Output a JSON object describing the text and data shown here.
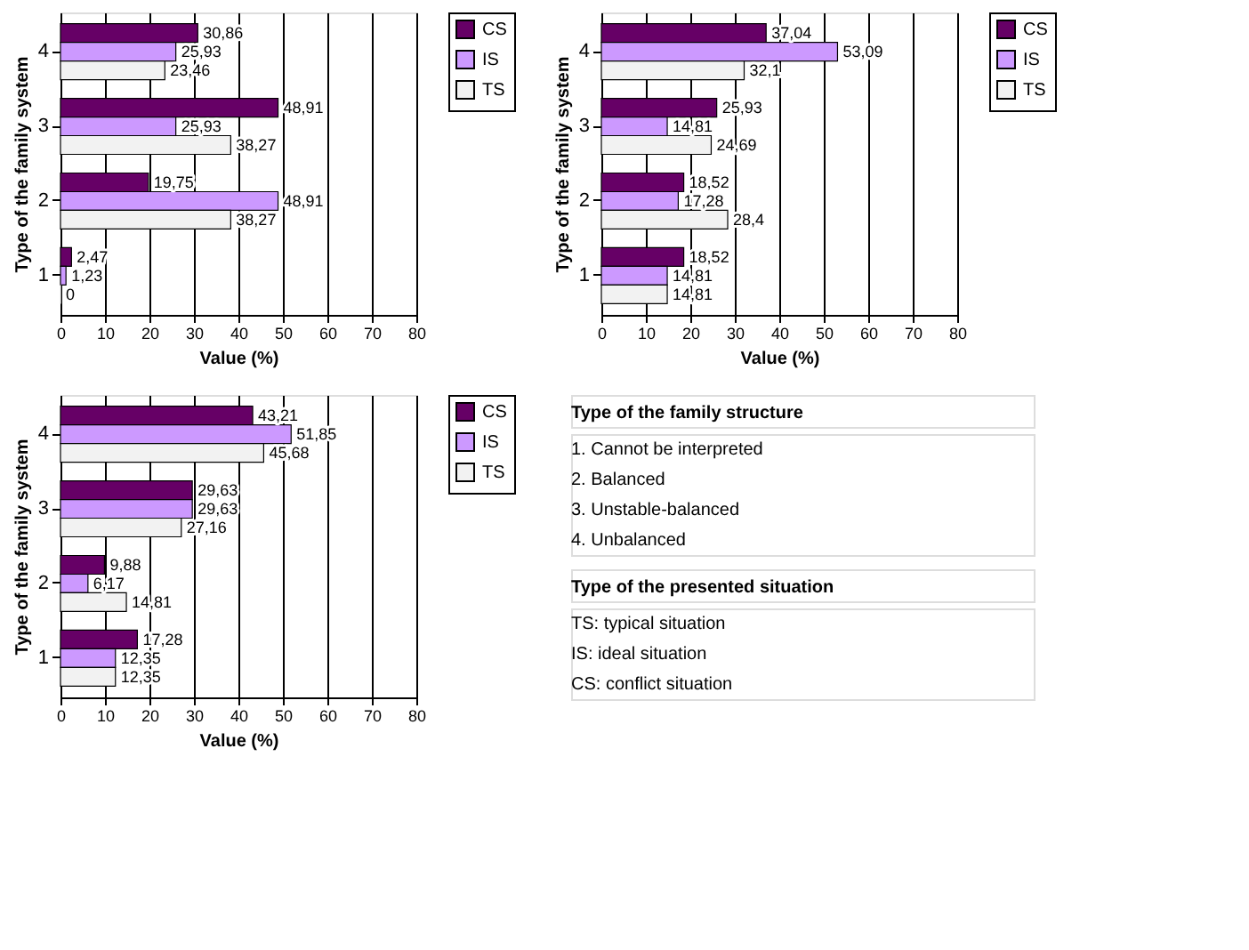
{
  "chart_data": [
    {
      "type": "bar",
      "orientation": "horizontal",
      "categories": [
        "4",
        "3",
        "2",
        "1"
      ],
      "xlabel": "Value (%)",
      "ylabel": "Type of the family system",
      "xlim": [
        0,
        80
      ],
      "xticks": [
        0,
        10,
        20,
        30,
        40,
        50,
        60,
        70,
        80
      ],
      "grid": "x",
      "legend": "right",
      "series": [
        {
          "name": "CS",
          "color": "#660066",
          "values": [
            30.86,
            48.91,
            19.75,
            2.47
          ],
          "value_labels": [
            "30,86",
            "48,91",
            "19,75",
            "2,47"
          ]
        },
        {
          "name": "IS",
          "color": "#cc99ff",
          "values": [
            25.93,
            25.93,
            48.91,
            1.23
          ],
          "value_labels": [
            "25,93",
            "25,93",
            "48,91",
            "1,23"
          ]
        },
        {
          "name": "TS",
          "color": "#f2f2f2",
          "values": [
            23.46,
            38.27,
            38.27,
            0
          ],
          "value_labels": [
            "23,46",
            "38,27",
            "38,27",
            "0"
          ]
        }
      ]
    },
    {
      "type": "bar",
      "orientation": "horizontal",
      "categories": [
        "4",
        "3",
        "2",
        "1"
      ],
      "xlabel": "Value (%)",
      "ylabel": "Type of the family system",
      "xlim": [
        0,
        80
      ],
      "xticks": [
        0,
        10,
        20,
        30,
        40,
        50,
        60,
        70,
        80
      ],
      "grid": "x",
      "legend": "right",
      "series": [
        {
          "name": "CS",
          "color": "#660066",
          "values": [
            37.04,
            25.93,
            18.52,
            18.52
          ],
          "value_labels": [
            "37,04",
            "25,93",
            "18,52",
            "18,52"
          ]
        },
        {
          "name": "IS",
          "color": "#cc99ff",
          "values": [
            53.09,
            14.81,
            17.28,
            14.81
          ],
          "value_labels": [
            "53,09",
            "14,81",
            "17,28",
            "14,81"
          ]
        },
        {
          "name": "TS",
          "color": "#f2f2f2",
          "values": [
            32.1,
            24.69,
            28.4,
            14.81
          ],
          "value_labels": [
            "32,1",
            "24,69",
            "28,4",
            "14,81"
          ]
        }
      ]
    },
    {
      "type": "bar",
      "orientation": "horizontal",
      "categories": [
        "4",
        "3",
        "2",
        "1"
      ],
      "xlabel": "Value (%)",
      "ylabel": "Type of the family system",
      "xlim": [
        0,
        80
      ],
      "xticks": [
        0,
        10,
        20,
        30,
        40,
        50,
        60,
        70,
        80
      ],
      "grid": "x",
      "legend": "right",
      "series": [
        {
          "name": "CS",
          "color": "#660066",
          "values": [
            43.21,
            29.63,
            9.88,
            17.28
          ],
          "value_labels": [
            "43,21",
            "29,63",
            "9,88",
            "17,28"
          ]
        },
        {
          "name": "IS",
          "color": "#cc99ff",
          "values": [
            51.85,
            29.63,
            6.17,
            12.35
          ],
          "value_labels": [
            "51,85",
            "29,63",
            "6,17",
            "12,35"
          ]
        },
        {
          "name": "TS",
          "color": "#f2f2f2",
          "values": [
            45.68,
            27.16,
            14.81,
            12.35
          ],
          "value_labels": [
            "45,68",
            "27,16",
            "14,81",
            "12,35"
          ]
        }
      ]
    },
    {
      "type": "other",
      "title": "Type of the family structure",
      "annotations": [
        "1.    Cannot be interpreted",
        "2.    Balanced",
        "3.    Unstable-balanced",
        "4.    Unbalanced"
      ]
    },
    {
      "type": "other",
      "title": "Type of the presented situation",
      "annotations": [
        "TS:  typical situation",
        "IS:   ideal situation",
        "CS: conflict situation"
      ]
    }
  ]
}
